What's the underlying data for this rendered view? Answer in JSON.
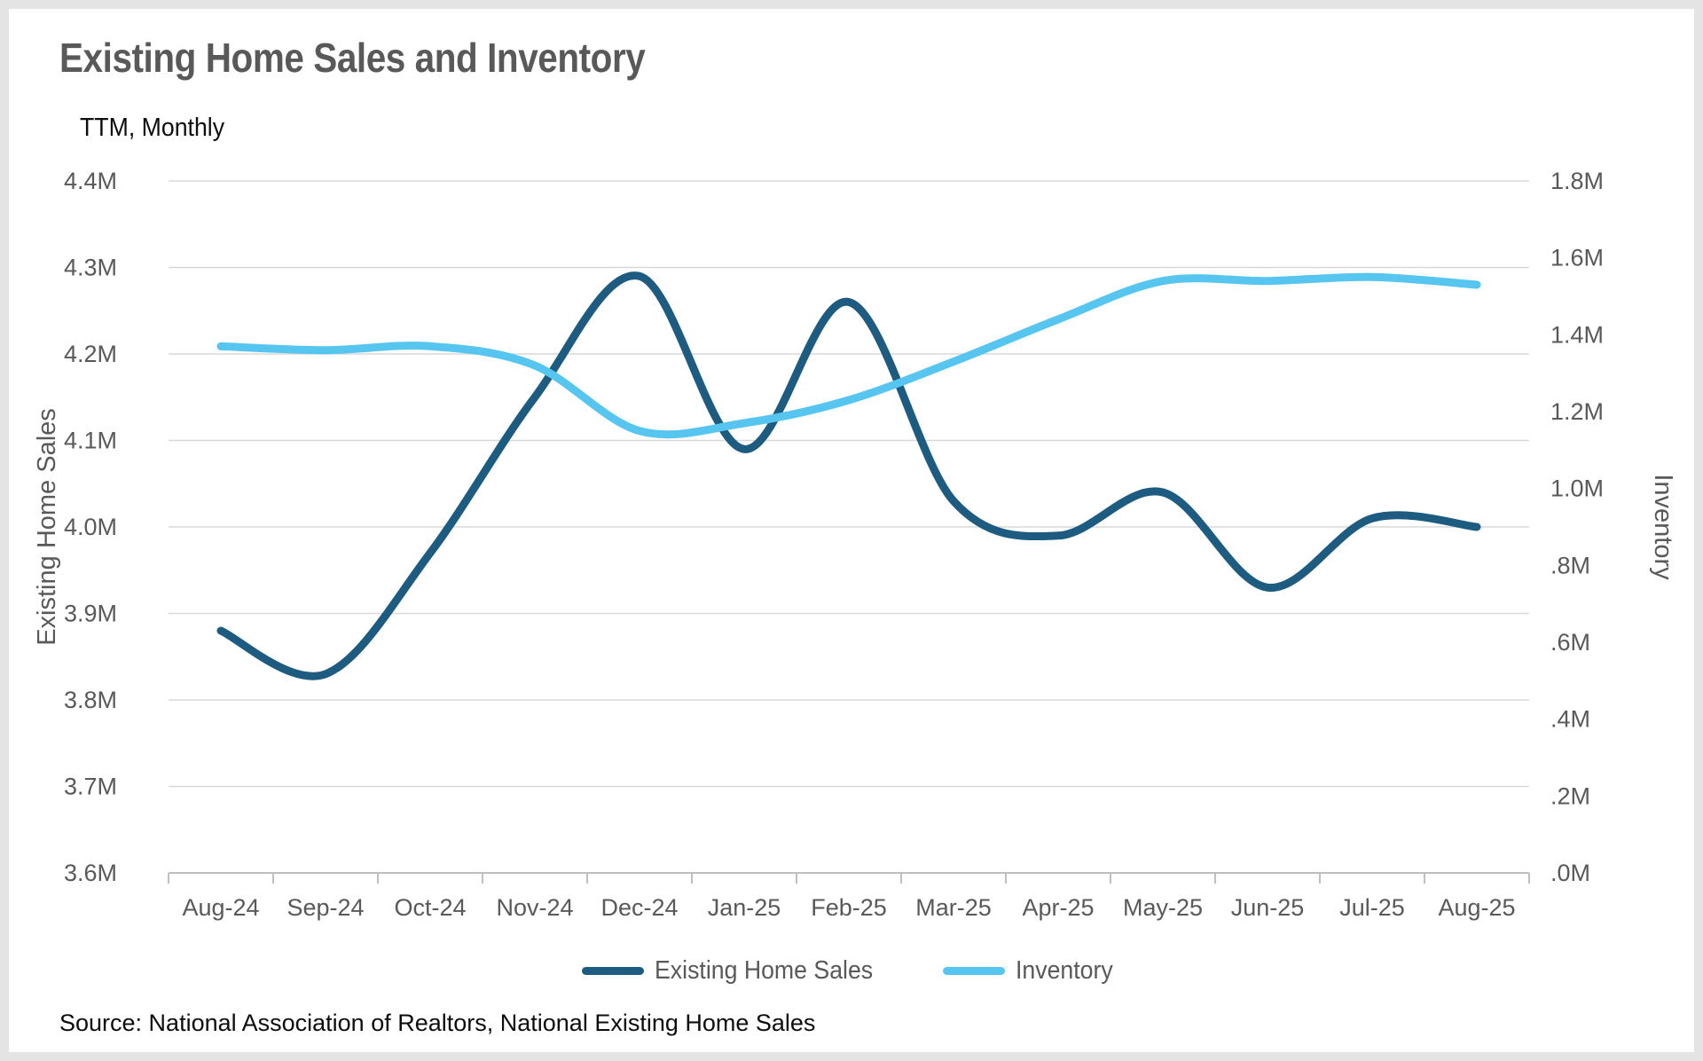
{
  "page": {
    "title": "Existing Home Sales and Inventory",
    "subtitle": "TTM, Monthly",
    "source": "Source: National Association of Realtors, National Existing Home Sales"
  },
  "colors": {
    "sales_line": "#1d5c80",
    "inventory_line": "#56c5f0",
    "gridline": "#d9d9d9",
    "axis_line": "#bfbfbf",
    "tick_text": "#595959",
    "title_text": "#595959",
    "frame": "#e4e4e4",
    "background": "#ffffff"
  },
  "chart_data": {
    "type": "line",
    "smooth": true,
    "grid": true,
    "legend_position": "bottom",
    "title": "Existing Home Sales and Inventory",
    "subtitle": "TTM, Monthly",
    "categories": [
      "Aug-24",
      "Sep-24",
      "Oct-24",
      "Nov-24",
      "Dec-24",
      "Jan-25",
      "Feb-25",
      "Mar-25",
      "Apr-25",
      "May-25",
      "Jun-25",
      "Jul-25",
      "Aug-25"
    ],
    "series": [
      {
        "name": "Existing Home Sales",
        "axis": "left",
        "color": "#1d5c80",
        "values": [
          3.88,
          3.83,
          3.97,
          4.15,
          4.29,
          4.09,
          4.26,
          4.03,
          3.99,
          4.04,
          3.93,
          4.01,
          4.0
        ]
      },
      {
        "name": "Inventory",
        "axis": "right",
        "color": "#56c5f0",
        "values": [
          1.37,
          1.36,
          1.37,
          1.32,
          1.15,
          1.17,
          1.23,
          1.33,
          1.44,
          1.54,
          1.54,
          1.55,
          1.53
        ]
      }
    ],
    "left_axis": {
      "title": "Existing Home Sales",
      "min": 3.6,
      "max": 4.4,
      "step": 0.1,
      "tick_labels": [
        "4.4M",
        "4.3M",
        "4.2M",
        "4.1M",
        "4.0M",
        "3.9M",
        "3.8M",
        "3.7M",
        "3.6M"
      ]
    },
    "right_axis": {
      "title": "Inventory",
      "min": 0.0,
      "max": 1.8,
      "step": 0.2,
      "tick_labels": [
        "1.8M",
        "1.6M",
        "1.4M",
        "1.2M",
        "1.0M",
        ".8M",
        ".6M",
        ".4M",
        ".2M",
        ".0M"
      ]
    }
  }
}
